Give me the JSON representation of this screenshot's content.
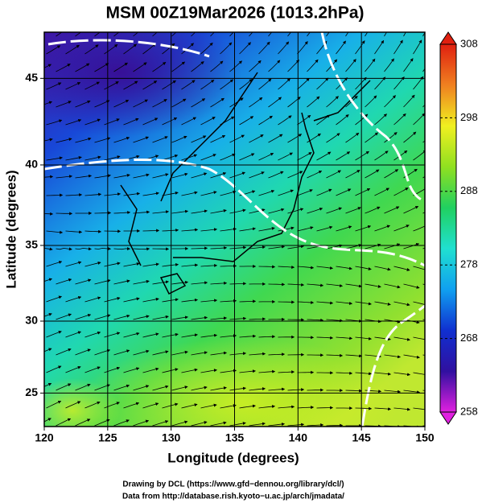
{
  "chart_data": {
    "type": "map",
    "title": "MSM 00Z19Mar2026 (1013.2hPa)",
    "xlabel": "Longitude (degrees)",
    "ylabel": "Latitude  (degrees)",
    "projection": "mercator",
    "xlim": [
      120,
      150
    ],
    "xticks": [
      120,
      125,
      130,
      135,
      140,
      145,
      150
    ],
    "ylim": [
      22.6,
      47.5
    ],
    "yticks": [
      25,
      30,
      35,
      40,
      45
    ],
    "grid": true,
    "colorbar": {
      "lim": [
        258,
        308
      ],
      "ticks": [
        258,
        268,
        278,
        288,
        298,
        308
      ],
      "colors": [
        "#e020e0",
        "#3010a0",
        "#1030d0",
        "#10a0f0",
        "#20e0d0",
        "#20d060",
        "#90e020",
        "#f0f020",
        "#f08020",
        "#e02010"
      ]
    }
  },
  "footer": {
    "lines": [
      "Drawing by DCL (https://www.gfd−dennou.org/library/dcl/)",
      "Data from http://database.rish.kyoto−u.ac.jp/arch/jmadata/"
    ]
  }
}
